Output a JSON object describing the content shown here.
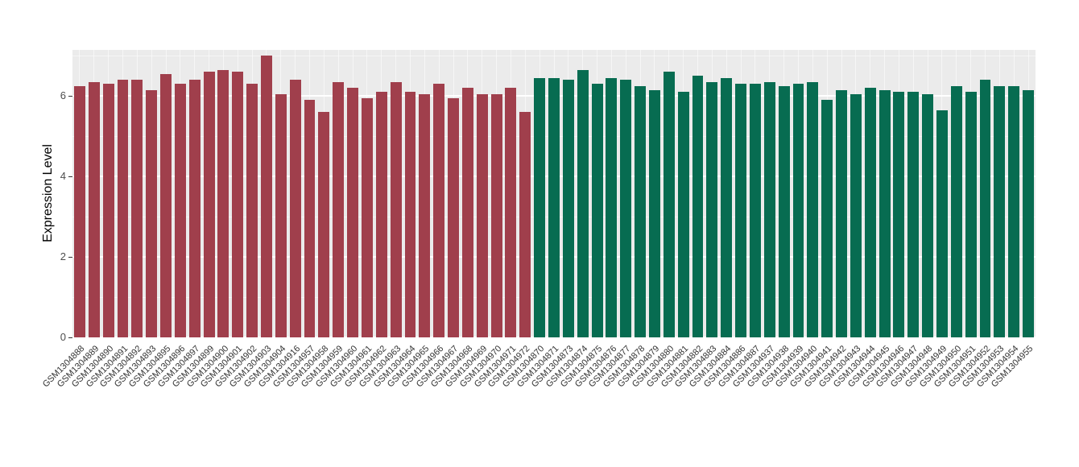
{
  "chart_data": {
    "type": "bar",
    "title": "",
    "xlabel": "",
    "ylabel": "Expression Level",
    "ylim": [
      0,
      7.14
    ],
    "yticks": [
      0,
      2,
      4,
      6
    ],
    "yticks_minor": [
      1,
      3,
      5,
      7
    ],
    "grid": true,
    "legend": "none",
    "panel_background": "#EBEBEB",
    "gridline_color": "#FFFFFF",
    "series": [
      {
        "name": "group-red",
        "color": "#A03F4C",
        "categories": [
          "GSM1304888",
          "GSM1304889",
          "GSM1304890",
          "GSM1304891",
          "GSM1304892",
          "GSM1304893",
          "GSM1304895",
          "GSM1304896",
          "GSM1304897",
          "GSM1304899",
          "GSM1304900",
          "GSM1304901",
          "GSM1304902",
          "GSM1304903",
          "GSM1304904",
          "GSM1304916",
          "GSM1304957",
          "GSM1304958",
          "GSM1304959",
          "GSM1304960",
          "GSM1304961",
          "GSM1304962",
          "GSM1304963",
          "GSM1304964",
          "GSM1304965",
          "GSM1304966",
          "GSM1304967",
          "GSM1304968",
          "GSM1304969",
          "GSM1304970",
          "GSM1304971",
          "GSM1304972"
        ],
        "values": [
          6.25,
          6.35,
          6.3,
          6.4,
          6.4,
          6.15,
          6.55,
          6.3,
          6.4,
          6.6,
          6.65,
          6.6,
          6.3,
          7.0,
          6.05,
          6.4,
          5.9,
          5.6,
          6.35,
          6.2,
          5.95,
          6.1,
          6.35,
          6.1,
          6.05,
          6.3,
          5.95,
          6.2,
          6.05,
          6.05,
          6.2,
          5.6
        ]
      },
      {
        "name": "group-green",
        "color": "#076C51",
        "categories": [
          "GSM1304870",
          "GSM1304871",
          "GSM1304873",
          "GSM1304874",
          "GSM1304875",
          "GSM1304876",
          "GSM1304877",
          "GSM1304878",
          "GSM1304879",
          "GSM1304880",
          "GSM1304881",
          "GSM1304882",
          "GSM1304883",
          "GSM1304884",
          "GSM1304886",
          "GSM1304887",
          "GSM1304937",
          "GSM1304938",
          "GSM1304939",
          "GSM1304940",
          "GSM1304941",
          "GSM1304942",
          "GSM1304943",
          "GSM1304944",
          "GSM1304945",
          "GSM1304946",
          "GSM1304947",
          "GSM1304948",
          "GSM1304949",
          "GSM1304950",
          "GSM1304951",
          "GSM1304952",
          "GSM1304953",
          "GSM1304954",
          "GSM1304955"
        ],
        "values": [
          6.45,
          6.45,
          6.4,
          6.65,
          6.3,
          6.45,
          6.4,
          6.25,
          6.15,
          6.6,
          6.1,
          6.5,
          6.35,
          6.45,
          6.3,
          6.3,
          6.35,
          6.25,
          6.3,
          6.35,
          5.9,
          6.15,
          6.05,
          6.2,
          6.15,
          6.1,
          6.1,
          6.05,
          5.65,
          6.25,
          6.1,
          6.4,
          6.25,
          6.25,
          6.15
        ]
      }
    ]
  }
}
